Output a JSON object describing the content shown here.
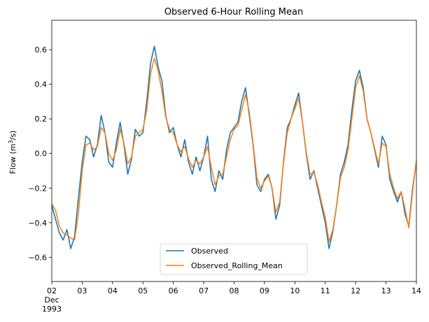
{
  "chart_data": {
    "type": "line",
    "title": "Observed 6-Hour Rolling Mean",
    "ylabel": "Flow (m",
    "ylabel_sup": "3",
    "ylabel_tail": "/s)",
    "xlim": [
      "1993-12-02T00:00",
      "1993-12-14T00:00"
    ],
    "ylim": [
      -0.74,
      0.77
    ],
    "grid": false,
    "legend_position": "lower center",
    "x_ticks": [
      {
        "date": "1993-12-02T00:00",
        "lines": [
          "02",
          "Dec",
          "1993"
        ]
      },
      {
        "date": "1993-12-03T00:00",
        "lines": [
          "03"
        ]
      },
      {
        "date": "1993-12-04T00:00",
        "lines": [
          "04"
        ]
      },
      {
        "date": "1993-12-05T00:00",
        "lines": [
          "05"
        ]
      },
      {
        "date": "1993-12-06T00:00",
        "lines": [
          "06"
        ]
      },
      {
        "date": "1993-12-07T00:00",
        "lines": [
          "07"
        ]
      },
      {
        "date": "1993-12-08T00:00",
        "lines": [
          "08"
        ]
      },
      {
        "date": "1993-12-09T00:00",
        "lines": [
          "09"
        ]
      },
      {
        "date": "1993-12-10T00:00",
        "lines": [
          "10"
        ]
      },
      {
        "date": "1993-12-11T00:00",
        "lines": [
          "11"
        ]
      },
      {
        "date": "1993-12-12T00:00",
        "lines": [
          "12"
        ]
      },
      {
        "date": "1993-12-13T00:00",
        "lines": [
          "13"
        ]
      },
      {
        "date": "1993-12-14T00:00",
        "lines": [
          "14"
        ]
      }
    ],
    "y_ticks": [
      -0.6,
      -0.4,
      -0.2,
      0.0,
      0.2,
      0.4,
      0.6
    ],
    "y_tick_labels": [
      "−0.6",
      "−0.4",
      "−0.2",
      "0.0",
      "0.2",
      "0.4",
      "0.6"
    ],
    "series": [
      {
        "name": "Observed",
        "color": "#1f77b4",
        "points": [
          [
            "1993-12-02T00:00",
            -0.3
          ],
          [
            "1993-12-02T03:00",
            -0.38
          ],
          [
            "1993-12-02T06:00",
            -0.46
          ],
          [
            "1993-12-02T09:00",
            -0.5
          ],
          [
            "1993-12-02T12:00",
            -0.44
          ],
          [
            "1993-12-02T15:00",
            -0.55
          ],
          [
            "1993-12-02T18:00",
            -0.48
          ],
          [
            "1993-12-02T21:00",
            -0.26
          ],
          [
            "1993-12-03T00:00",
            -0.05
          ],
          [
            "1993-12-03T03:00",
            0.1
          ],
          [
            "1993-12-03T06:00",
            0.08
          ],
          [
            "1993-12-03T09:00",
            -0.02
          ],
          [
            "1993-12-03T12:00",
            0.05
          ],
          [
            "1993-12-03T15:00",
            0.22
          ],
          [
            "1993-12-03T18:00",
            0.12
          ],
          [
            "1993-12-03T21:00",
            -0.05
          ],
          [
            "1993-12-04T00:00",
            -0.08
          ],
          [
            "1993-12-04T03:00",
            0.06
          ],
          [
            "1993-12-04T06:00",
            0.18
          ],
          [
            "1993-12-04T09:00",
            0.05
          ],
          [
            "1993-12-04T12:00",
            -0.12
          ],
          [
            "1993-12-04T15:00",
            -0.03
          ],
          [
            "1993-12-04T18:00",
            0.14
          ],
          [
            "1993-12-04T21:00",
            0.1
          ],
          [
            "1993-12-05T00:00",
            0.12
          ],
          [
            "1993-12-05T03:00",
            0.3
          ],
          [
            "1993-12-05T06:00",
            0.52
          ],
          [
            "1993-12-05T09:00",
            0.62
          ],
          [
            "1993-12-05T12:00",
            0.5
          ],
          [
            "1993-12-05T15:00",
            0.42
          ],
          [
            "1993-12-05T18:00",
            0.22
          ],
          [
            "1993-12-05T21:00",
            0.12
          ],
          [
            "1993-12-06T00:00",
            0.15
          ],
          [
            "1993-12-06T03:00",
            0.05
          ],
          [
            "1993-12-06T06:00",
            -0.02
          ],
          [
            "1993-12-06T09:00",
            0.08
          ],
          [
            "1993-12-06T12:00",
            -0.05
          ],
          [
            "1993-12-06T15:00",
            -0.12
          ],
          [
            "1993-12-06T18:00",
            -0.02
          ],
          [
            "1993-12-06T21:00",
            -0.1
          ],
          [
            "1993-12-07T00:00",
            -0.02
          ],
          [
            "1993-12-07T03:00",
            0.1
          ],
          [
            "1993-12-07T06:00",
            -0.15
          ],
          [
            "1993-12-07T09:00",
            -0.22
          ],
          [
            "1993-12-07T12:00",
            -0.1
          ],
          [
            "1993-12-07T15:00",
            -0.15
          ],
          [
            "1993-12-07T18:00",
            0.02
          ],
          [
            "1993-12-07T21:00",
            0.12
          ],
          [
            "1993-12-08T00:00",
            0.15
          ],
          [
            "1993-12-08T03:00",
            0.18
          ],
          [
            "1993-12-08T06:00",
            0.3
          ],
          [
            "1993-12-08T09:00",
            0.38
          ],
          [
            "1993-12-08T12:00",
            0.22
          ],
          [
            "1993-12-08T15:00",
            0.05
          ],
          [
            "1993-12-08T18:00",
            -0.18
          ],
          [
            "1993-12-08T21:00",
            -0.22
          ],
          [
            "1993-12-09T00:00",
            -0.15
          ],
          [
            "1993-12-09T03:00",
            -0.12
          ],
          [
            "1993-12-09T06:00",
            -0.2
          ],
          [
            "1993-12-09T09:00",
            -0.38
          ],
          [
            "1993-12-09T12:00",
            -0.3
          ],
          [
            "1993-12-09T15:00",
            -0.05
          ],
          [
            "1993-12-09T18:00",
            0.15
          ],
          [
            "1993-12-09T21:00",
            0.2
          ],
          [
            "1993-12-10T00:00",
            0.28
          ],
          [
            "1993-12-10T03:00",
            0.35
          ],
          [
            "1993-12-10T06:00",
            0.18
          ],
          [
            "1993-12-10T09:00",
            0.0
          ],
          [
            "1993-12-10T12:00",
            -0.15
          ],
          [
            "1993-12-10T15:00",
            -0.1
          ],
          [
            "1993-12-10T18:00",
            -0.2
          ],
          [
            "1993-12-10T21:00",
            -0.3
          ],
          [
            "1993-12-11T00:00",
            -0.4
          ],
          [
            "1993-12-11T03:00",
            -0.55
          ],
          [
            "1993-12-11T06:00",
            -0.45
          ],
          [
            "1993-12-11T09:00",
            -0.3
          ],
          [
            "1993-12-11T12:00",
            -0.12
          ],
          [
            "1993-12-11T15:00",
            -0.05
          ],
          [
            "1993-12-11T18:00",
            0.05
          ],
          [
            "1993-12-11T21:00",
            0.25
          ],
          [
            "1993-12-12T00:00",
            0.42
          ],
          [
            "1993-12-12T03:00",
            0.48
          ],
          [
            "1993-12-12T06:00",
            0.38
          ],
          [
            "1993-12-12T09:00",
            0.2
          ],
          [
            "1993-12-12T12:00",
            0.12
          ],
          [
            "1993-12-12T15:00",
            0.02
          ],
          [
            "1993-12-12T18:00",
            -0.08
          ],
          [
            "1993-12-12T21:00",
            0.1
          ],
          [
            "1993-12-13T00:00",
            0.05
          ],
          [
            "1993-12-13T03:00",
            -0.15
          ],
          [
            "1993-12-13T06:00",
            -0.22
          ],
          [
            "1993-12-13T09:00",
            -0.28
          ],
          [
            "1993-12-13T12:00",
            -0.22
          ],
          [
            "1993-12-13T15:00",
            -0.35
          ],
          [
            "1993-12-13T18:00",
            -0.42
          ],
          [
            "1993-12-13T21:00",
            -0.2
          ],
          [
            "1993-12-14T00:00",
            -0.05
          ]
        ]
      },
      {
        "name": "Observed_Rolling_Mean",
        "color": "#ff7f0e",
        "points": [
          [
            "1993-12-02T00:00",
            -0.29
          ],
          [
            "1993-12-02T03:00",
            -0.33
          ],
          [
            "1993-12-02T06:00",
            -0.42
          ],
          [
            "1993-12-02T09:00",
            -0.46
          ],
          [
            "1993-12-02T12:00",
            -0.47
          ],
          [
            "1993-12-02T15:00",
            -0.49
          ],
          [
            "1993-12-02T18:00",
            -0.5
          ],
          [
            "1993-12-02T21:00",
            -0.35
          ],
          [
            "1993-12-03T00:00",
            -0.1
          ],
          [
            "1993-12-03T03:00",
            0.05
          ],
          [
            "1993-12-03T06:00",
            0.06
          ],
          [
            "1993-12-03T09:00",
            0.02
          ],
          [
            "1993-12-03T12:00",
            0.04
          ],
          [
            "1993-12-03T15:00",
            0.15
          ],
          [
            "1993-12-03T18:00",
            0.12
          ],
          [
            "1993-12-03T21:00",
            0.0
          ],
          [
            "1993-12-04T00:00",
            -0.04
          ],
          [
            "1993-12-04T03:00",
            0.02
          ],
          [
            "1993-12-04T06:00",
            0.14
          ],
          [
            "1993-12-04T09:00",
            0.06
          ],
          [
            "1993-12-04T12:00",
            -0.06
          ],
          [
            "1993-12-04T15:00",
            -0.02
          ],
          [
            "1993-12-04T18:00",
            0.1
          ],
          [
            "1993-12-04T21:00",
            0.12
          ],
          [
            "1993-12-05T00:00",
            0.14
          ],
          [
            "1993-12-05T03:00",
            0.25
          ],
          [
            "1993-12-05T06:00",
            0.46
          ],
          [
            "1993-12-05T09:00",
            0.55
          ],
          [
            "1993-12-05T12:00",
            0.48
          ],
          [
            "1993-12-05T15:00",
            0.36
          ],
          [
            "1993-12-05T18:00",
            0.21
          ],
          [
            "1993-12-05T21:00",
            0.14
          ],
          [
            "1993-12-06T00:00",
            0.12
          ],
          [
            "1993-12-06T03:00",
            0.05
          ],
          [
            "1993-12-06T06:00",
            0.01
          ],
          [
            "1993-12-06T09:00",
            0.04
          ],
          [
            "1993-12-06T12:00",
            -0.03
          ],
          [
            "1993-12-06T15:00",
            -0.08
          ],
          [
            "1993-12-06T18:00",
            -0.04
          ],
          [
            "1993-12-06T21:00",
            -0.06
          ],
          [
            "1993-12-07T00:00",
            -0.02
          ],
          [
            "1993-12-07T03:00",
            0.04
          ],
          [
            "1993-12-07T06:00",
            -0.08
          ],
          [
            "1993-12-07T09:00",
            -0.18
          ],
          [
            "1993-12-07T12:00",
            -0.13
          ],
          [
            "1993-12-07T15:00",
            -0.12
          ],
          [
            "1993-12-07T18:00",
            -0.02
          ],
          [
            "1993-12-07T21:00",
            0.08
          ],
          [
            "1993-12-08T00:00",
            0.14
          ],
          [
            "1993-12-08T03:00",
            0.16
          ],
          [
            "1993-12-08T06:00",
            0.25
          ],
          [
            "1993-12-08T09:00",
            0.34
          ],
          [
            "1993-12-08T12:00",
            0.24
          ],
          [
            "1993-12-08T15:00",
            0.06
          ],
          [
            "1993-12-08T18:00",
            -0.14
          ],
          [
            "1993-12-08T21:00",
            -0.2
          ],
          [
            "1993-12-09T00:00",
            -0.16
          ],
          [
            "1993-12-09T03:00",
            -0.13
          ],
          [
            "1993-12-09T06:00",
            -0.2
          ],
          [
            "1993-12-09T09:00",
            -0.34
          ],
          [
            "1993-12-09T12:00",
            -0.28
          ],
          [
            "1993-12-09T15:00",
            -0.06
          ],
          [
            "1993-12-09T18:00",
            0.12
          ],
          [
            "1993-12-09T21:00",
            0.2
          ],
          [
            "1993-12-10T00:00",
            0.26
          ],
          [
            "1993-12-10T03:00",
            0.32
          ],
          [
            "1993-12-10T06:00",
            0.18
          ],
          [
            "1993-12-10T09:00",
            0.01
          ],
          [
            "1993-12-10T12:00",
            -0.12
          ],
          [
            "1993-12-10T15:00",
            -0.11
          ],
          [
            "1993-12-10T18:00",
            -0.18
          ],
          [
            "1993-12-10T21:00",
            -0.28
          ],
          [
            "1993-12-11T00:00",
            -0.37
          ],
          [
            "1993-12-11T03:00",
            -0.51
          ],
          [
            "1993-12-11T06:00",
            -0.44
          ],
          [
            "1993-12-11T09:00",
            -0.3
          ],
          [
            "1993-12-11T12:00",
            -0.14
          ],
          [
            "1993-12-11T15:00",
            -0.08
          ],
          [
            "1993-12-11T18:00",
            0.02
          ],
          [
            "1993-12-11T21:00",
            0.2
          ],
          [
            "1993-12-12T00:00",
            0.38
          ],
          [
            "1993-12-12T03:00",
            0.45
          ],
          [
            "1993-12-12T06:00",
            0.36
          ],
          [
            "1993-12-12T09:00",
            0.2
          ],
          [
            "1993-12-12T12:00",
            0.12
          ],
          [
            "1993-12-12T15:00",
            0.03
          ],
          [
            "1993-12-12T18:00",
            -0.06
          ],
          [
            "1993-12-12T21:00",
            0.06
          ],
          [
            "1993-12-13T00:00",
            0.04
          ],
          [
            "1993-12-13T03:00",
            -0.12
          ],
          [
            "1993-12-13T06:00",
            -0.2
          ],
          [
            "1993-12-13T09:00",
            -0.26
          ],
          [
            "1993-12-13T12:00",
            -0.22
          ],
          [
            "1993-12-13T15:00",
            -0.32
          ],
          [
            "1993-12-13T18:00",
            -0.43
          ],
          [
            "1993-12-13T21:00",
            -0.22
          ],
          [
            "1993-12-14T00:00",
            -0.04
          ]
        ]
      }
    ]
  }
}
